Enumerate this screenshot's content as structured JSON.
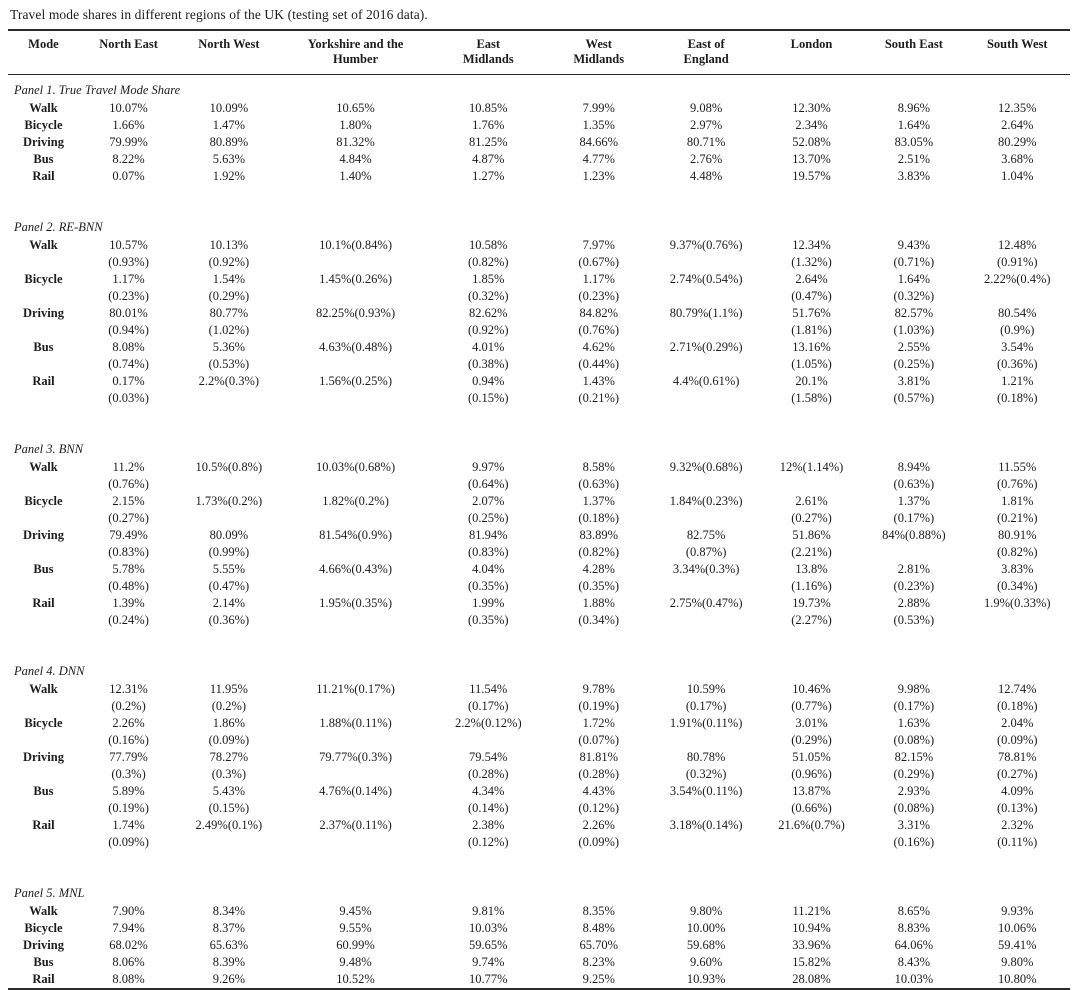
{
  "title": "Travel mode shares in different regions of the UK (testing set of 2016 data).",
  "column_ids": [
    "mode",
    "north-east",
    "north-west",
    "yorkshire-humber",
    "east-midlands",
    "west-midlands",
    "east-england",
    "london",
    "south-east",
    "south-west"
  ],
  "header": [
    [
      "Mode"
    ],
    [
      "North East"
    ],
    [
      "North West"
    ],
    [
      "Yorkshire and the",
      "Humber"
    ],
    [
      "East",
      "Midlands"
    ],
    [
      "West",
      "Midlands"
    ],
    [
      "East of",
      "England"
    ],
    [
      "London"
    ],
    [
      "South East"
    ],
    [
      "South West"
    ]
  ],
  "panels": [
    {
      "label": "Panel 1. True Travel Mode Share",
      "rows": [
        {
          "mode": "Walk",
          "cells": [
            [
              "10.07%"
            ],
            [
              "10.09%"
            ],
            [
              "10.65%"
            ],
            [
              "10.85%"
            ],
            [
              "7.99%"
            ],
            [
              "9.08%"
            ],
            [
              "12.30%"
            ],
            [
              "8.96%"
            ],
            [
              "12.35%"
            ]
          ]
        },
        {
          "mode": "Bicycle",
          "cells": [
            [
              "1.66%"
            ],
            [
              "1.47%"
            ],
            [
              "1.80%"
            ],
            [
              "1.76%"
            ],
            [
              "1.35%"
            ],
            [
              "2.97%"
            ],
            [
              "2.34%"
            ],
            [
              "1.64%"
            ],
            [
              "2.64%"
            ]
          ]
        },
        {
          "mode": "Driving",
          "cells": [
            [
              "79.99%"
            ],
            [
              "80.89%"
            ],
            [
              "81.32%"
            ],
            [
              "81.25%"
            ],
            [
              "84.66%"
            ],
            [
              "80.71%"
            ],
            [
              "52.08%"
            ],
            [
              "83.05%"
            ],
            [
              "80.29%"
            ]
          ]
        },
        {
          "mode": "Bus",
          "cells": [
            [
              "8.22%"
            ],
            [
              "5.63%"
            ],
            [
              "4.84%"
            ],
            [
              "4.87%"
            ],
            [
              "4.77%"
            ],
            [
              "2.76%"
            ],
            [
              "13.70%"
            ],
            [
              "2.51%"
            ],
            [
              "3.68%"
            ]
          ]
        },
        {
          "mode": "Rail",
          "cells": [
            [
              "0.07%"
            ],
            [
              "1.92%"
            ],
            [
              "1.40%"
            ],
            [
              "1.27%"
            ],
            [
              "1.23%"
            ],
            [
              "4.48%"
            ],
            [
              "19.57%"
            ],
            [
              "3.83%"
            ],
            [
              "1.04%"
            ]
          ]
        }
      ]
    },
    {
      "label": "Panel 2. RE-BNN",
      "rows": [
        {
          "mode": "Walk",
          "cells": [
            [
              "10.57%",
              "(0.93%)"
            ],
            [
              "10.13%",
              "(0.92%)"
            ],
            [
              "10.1%(0.84%)"
            ],
            [
              "10.58%",
              "(0.82%)"
            ],
            [
              "7.97%",
              "(0.67%)"
            ],
            [
              "9.37%(0.76%)"
            ],
            [
              "12.34%",
              "(1.32%)"
            ],
            [
              "9.43%",
              "(0.71%)"
            ],
            [
              "12.48%",
              "(0.91%)"
            ]
          ]
        },
        {
          "mode": "Bicycle",
          "cells": [
            [
              "1.17%",
              "(0.23%)"
            ],
            [
              "1.54%",
              "(0.29%)"
            ],
            [
              "1.45%(0.26%)"
            ],
            [
              "1.85%",
              "(0.32%)"
            ],
            [
              "1.17%",
              "(0.23%)"
            ],
            [
              "2.74%(0.54%)"
            ],
            [
              "2.64%",
              "(0.47%)"
            ],
            [
              "1.64%",
              "(0.32%)"
            ],
            [
              "2.22%(0.4%)"
            ]
          ]
        },
        {
          "mode": "Driving",
          "cells": [
            [
              "80.01%",
              "(0.94%)"
            ],
            [
              "80.77%",
              "(1.02%)"
            ],
            [
              "82.25%(0.93%)"
            ],
            [
              "82.62%",
              "(0.92%)"
            ],
            [
              "84.82%",
              "(0.76%)"
            ],
            [
              "80.79%(1.1%)"
            ],
            [
              "51.76%",
              "(1.81%)"
            ],
            [
              "82.57%",
              "(1.03%)"
            ],
            [
              "80.54%",
              "(0.9%)"
            ]
          ]
        },
        {
          "mode": "Bus",
          "cells": [
            [
              "8.08%",
              "(0.74%)"
            ],
            [
              "5.36%",
              "(0.53%)"
            ],
            [
              "4.63%(0.48%)"
            ],
            [
              "4.01%",
              "(0.38%)"
            ],
            [
              "4.62%",
              "(0.44%)"
            ],
            [
              "2.71%(0.29%)"
            ],
            [
              "13.16%",
              "(1.05%)"
            ],
            [
              "2.55%",
              "(0.25%)"
            ],
            [
              "3.54%",
              "(0.36%)"
            ]
          ]
        },
        {
          "mode": "Rail",
          "cells": [
            [
              "0.17%",
              "(0.03%)"
            ],
            [
              "2.2%(0.3%)"
            ],
            [
              "1.56%(0.25%)"
            ],
            [
              "0.94%",
              "(0.15%)"
            ],
            [
              "1.43%",
              "(0.21%)"
            ],
            [
              "4.4%(0.61%)"
            ],
            [
              "20.1%",
              "(1.58%)"
            ],
            [
              "3.81%",
              "(0.57%)"
            ],
            [
              "1.21%",
              "(0.18%)"
            ]
          ]
        }
      ]
    },
    {
      "label": "Panel 3. BNN",
      "rows": [
        {
          "mode": "Walk",
          "cells": [
            [
              "11.2%",
              "(0.76%)"
            ],
            [
              "10.5%(0.8%)"
            ],
            [
              "10.03%(0.68%)"
            ],
            [
              "9.97%",
              "(0.64%)"
            ],
            [
              "8.58%",
              "(0.63%)"
            ],
            [
              "9.32%(0.68%)"
            ],
            [
              "12%(1.14%)"
            ],
            [
              "8.94%",
              "(0.63%)"
            ],
            [
              "11.55%",
              "(0.76%)"
            ]
          ]
        },
        {
          "mode": "Bicycle",
          "cells": [
            [
              "2.15%",
              "(0.27%)"
            ],
            [
              "1.73%(0.2%)"
            ],
            [
              "1.82%(0.2%)"
            ],
            [
              "2.07%",
              "(0.25%)"
            ],
            [
              "1.37%",
              "(0.18%)"
            ],
            [
              "1.84%(0.23%)"
            ],
            [
              "2.61%",
              "(0.27%)"
            ],
            [
              "1.37%",
              "(0.17%)"
            ],
            [
              "1.81%",
              "(0.21%)"
            ]
          ]
        },
        {
          "mode": "Driving",
          "cells": [
            [
              "79.49%",
              "(0.83%)"
            ],
            [
              "80.09%",
              "(0.99%)"
            ],
            [
              "81.54%(0.9%)"
            ],
            [
              "81.94%",
              "(0.83%)"
            ],
            [
              "83.89%",
              "(0.82%)"
            ],
            [
              "82.75%",
              "(0.87%)"
            ],
            [
              "51.86%",
              "(2.21%)"
            ],
            [
              "84%(0.88%)"
            ],
            [
              "80.91%",
              "(0.82%)"
            ]
          ]
        },
        {
          "mode": "Bus",
          "cells": [
            [
              "5.78%",
              "(0.48%)"
            ],
            [
              "5.55%",
              "(0.47%)"
            ],
            [
              "4.66%(0.43%)"
            ],
            [
              "4.04%",
              "(0.35%)"
            ],
            [
              "4.28%",
              "(0.35%)"
            ],
            [
              "3.34%(0.3%)"
            ],
            [
              "13.8%",
              "(1.16%)"
            ],
            [
              "2.81%",
              "(0.23%)"
            ],
            [
              "3.83%",
              "(0.34%)"
            ]
          ]
        },
        {
          "mode": "Rail",
          "cells": [
            [
              "1.39%",
              "(0.24%)"
            ],
            [
              "2.14%",
              "(0.36%)"
            ],
            [
              "1.95%(0.35%)"
            ],
            [
              "1.99%",
              "(0.35%)"
            ],
            [
              "1.88%",
              "(0.34%)"
            ],
            [
              "2.75%(0.47%)"
            ],
            [
              "19.73%",
              "(2.27%)"
            ],
            [
              "2.88%",
              "(0.53%)"
            ],
            [
              "1.9%(0.33%)"
            ]
          ]
        }
      ]
    },
    {
      "label": "Panel 4. DNN",
      "rows": [
        {
          "mode": "Walk",
          "cells": [
            [
              "12.31%",
              "(0.2%)"
            ],
            [
              "11.95%",
              "(0.2%)"
            ],
            [
              "11.21%(0.17%)"
            ],
            [
              "11.54%",
              "(0.17%)"
            ],
            [
              "9.78%",
              "(0.19%)"
            ],
            [
              "10.59%",
              "(0.17%)"
            ],
            [
              "10.46%",
              "(0.77%)"
            ],
            [
              "9.98%",
              "(0.17%)"
            ],
            [
              "12.74%",
              "(0.18%)"
            ]
          ]
        },
        {
          "mode": "Bicycle",
          "cells": [
            [
              "2.26%",
              "(0.16%)"
            ],
            [
              "1.86%",
              "(0.09%)"
            ],
            [
              "1.88%(0.11%)"
            ],
            [
              "2.2%(0.12%)"
            ],
            [
              "1.72%",
              "(0.07%)"
            ],
            [
              "1.91%(0.11%)"
            ],
            [
              "3.01%",
              "(0.29%)"
            ],
            [
              "1.63%",
              "(0.08%)"
            ],
            [
              "2.04%",
              "(0.09%)"
            ]
          ]
        },
        {
          "mode": "Driving",
          "cells": [
            [
              "77.79%",
              "(0.3%)"
            ],
            [
              "78.27%",
              "(0.3%)"
            ],
            [
              "79.77%(0.3%)"
            ],
            [
              "79.54%",
              "(0.28%)"
            ],
            [
              "81.81%",
              "(0.28%)"
            ],
            [
              "80.78%",
              "(0.32%)"
            ],
            [
              "51.05%",
              "(0.96%)"
            ],
            [
              "82.15%",
              "(0.29%)"
            ],
            [
              "78.81%",
              "(0.27%)"
            ]
          ]
        },
        {
          "mode": "Bus",
          "cells": [
            [
              "5.89%",
              "(0.19%)"
            ],
            [
              "5.43%",
              "(0.15%)"
            ],
            [
              "4.76%(0.14%)"
            ],
            [
              "4.34%",
              "(0.14%)"
            ],
            [
              "4.43%",
              "(0.12%)"
            ],
            [
              "3.54%(0.11%)"
            ],
            [
              "13.87%",
              "(0.66%)"
            ],
            [
              "2.93%",
              "(0.08%)"
            ],
            [
              "4.09%",
              "(0.13%)"
            ]
          ]
        },
        {
          "mode": "Rail",
          "cells": [
            [
              "1.74%",
              "(0.09%)"
            ],
            [
              "2.49%(0.1%)"
            ],
            [
              "2.37%(0.11%)"
            ],
            [
              "2.38%",
              "(0.12%)"
            ],
            [
              "2.26%",
              "(0.09%)"
            ],
            [
              "3.18%(0.14%)"
            ],
            [
              "21.6%(0.7%)"
            ],
            [
              "3.31%",
              "(0.16%)"
            ],
            [
              "2.32%",
              "(0.11%)"
            ]
          ]
        }
      ]
    },
    {
      "label": "Panel 5. MNL",
      "rows": [
        {
          "mode": "Walk",
          "cells": [
            [
              "7.90%"
            ],
            [
              "8.34%"
            ],
            [
              "9.45%"
            ],
            [
              "9.81%"
            ],
            [
              "8.35%"
            ],
            [
              "9.80%"
            ],
            [
              "11.21%"
            ],
            [
              "8.65%"
            ],
            [
              "9.93%"
            ]
          ]
        },
        {
          "mode": "Bicycle",
          "cells": [
            [
              "7.94%"
            ],
            [
              "8.37%"
            ],
            [
              "9.55%"
            ],
            [
              "10.03%"
            ],
            [
              "8.48%"
            ],
            [
              "10.00%"
            ],
            [
              "10.94%"
            ],
            [
              "8.83%"
            ],
            [
              "10.06%"
            ]
          ]
        },
        {
          "mode": "Driving",
          "cells": [
            [
              "68.02%"
            ],
            [
              "65.63%"
            ],
            [
              "60.99%"
            ],
            [
              "59.65%"
            ],
            [
              "65.70%"
            ],
            [
              "59.68%"
            ],
            [
              "33.96%"
            ],
            [
              "64.06%"
            ],
            [
              "59.41%"
            ]
          ]
        },
        {
          "mode": "Bus",
          "cells": [
            [
              "8.06%"
            ],
            [
              "8.39%"
            ],
            [
              "9.48%"
            ],
            [
              "9.74%"
            ],
            [
              "8.23%"
            ],
            [
              "9.60%"
            ],
            [
              "15.82%"
            ],
            [
              "8.43%"
            ],
            [
              "9.80%"
            ]
          ]
        },
        {
          "mode": "Rail",
          "cells": [
            [
              "8.08%"
            ],
            [
              "9.26%"
            ],
            [
              "10.52%"
            ],
            [
              "10.77%"
            ],
            [
              "9.25%"
            ],
            [
              "10.93%"
            ],
            [
              "28.08%"
            ],
            [
              "10.03%"
            ],
            [
              "10.80%"
            ]
          ]
        }
      ]
    }
  ]
}
